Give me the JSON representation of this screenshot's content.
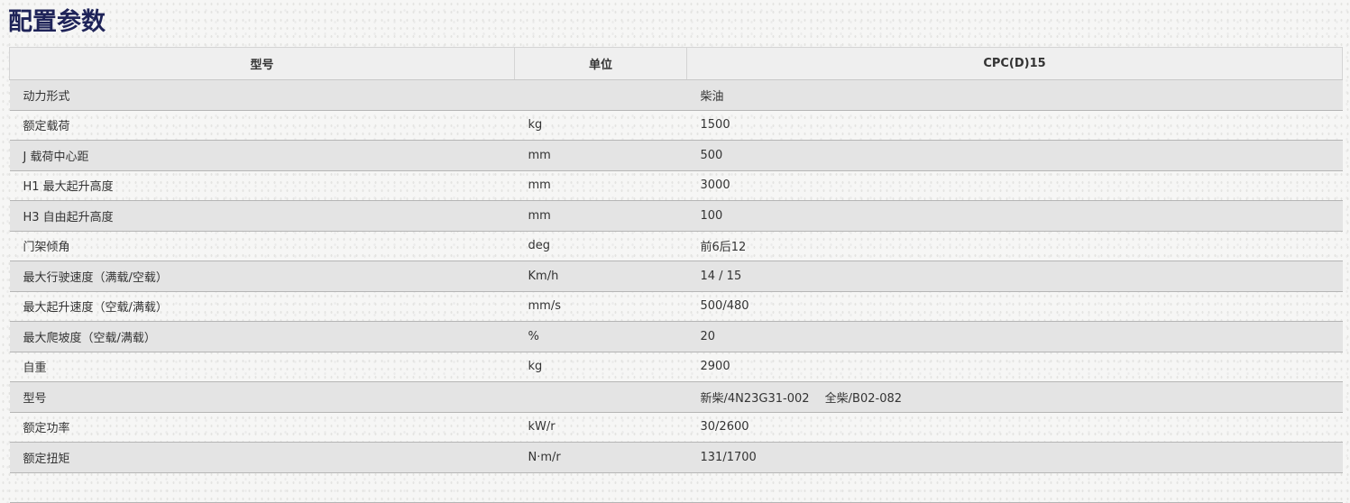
{
  "title": "配置参数",
  "table": {
    "headers": [
      "型号",
      "单位",
      "CPC(D)15"
    ],
    "rows": [
      [
        "动力形式",
        "",
        "柴油"
      ],
      [
        "额定载荷",
        "kg",
        "1500"
      ],
      [
        "J 载荷中心距",
        "mm",
        "500"
      ],
      [
        "H1 最大起升高度",
        "mm",
        "3000"
      ],
      [
        "H3 自由起升高度",
        "mm",
        "100"
      ],
      [
        "门架倾角",
        "deg",
        "前6后12"
      ],
      [
        "最大行驶速度（满载/空载）",
        "Km/h",
        "14 / 15"
      ],
      [
        "最大起升速度（空载/满载）",
        "mm/s",
        "500/480"
      ],
      [
        "最大爬坡度（空载/满载）",
        "%",
        "20"
      ],
      [
        "自重",
        "kg",
        "2900"
      ],
      [
        "型号",
        "",
        "新柴/4N23G31-002　 全柴/B02-082"
      ],
      [
        "额定功率",
        "kW/r",
        "30/2600"
      ],
      [
        "额定扭矩",
        "N·m/r",
        "131/1700"
      ]
    ]
  }
}
